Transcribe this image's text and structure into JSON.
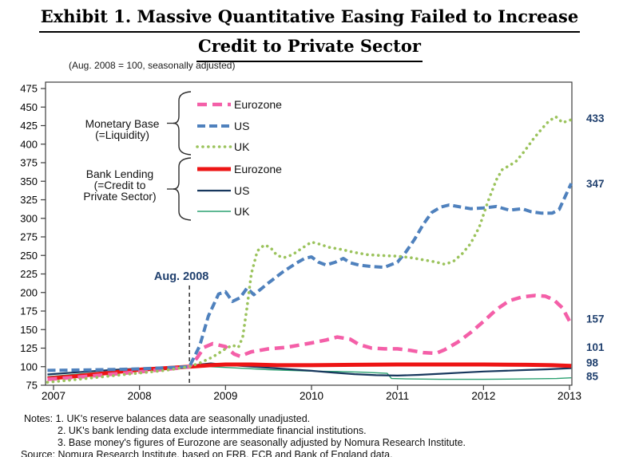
{
  "title": {
    "line1": "Exhibit 1. Massive Quantitative Easing Failed to Increase",
    "line2": "Credit to Private Sector"
  },
  "notes": [
    "Notes: 1. UK's reserve balances data are seasonally unadjusted.",
    "2. UK's bank lending data exclude intermmediate financial institutions.",
    "3. Base money's figures of Eurozone are seasonally adjusted by Nomura Research Institute."
  ],
  "source": "Source: Nomura Research Institute, based on FRB, ECB and Bank of England data.",
  "colors": {
    "accent_text": "#20406e",
    "axis": "#3c3c3c",
    "eurozone_mb": "#f45fa8",
    "us_mb": "#4f81bd",
    "uk_mb": "#9bc35c",
    "eurozone_bl": "#ed1515",
    "us_bl": "#17375d",
    "uk_bl": "#2aa070"
  },
  "chart_data": {
    "type": "line",
    "title": "Exhibit 1. Massive Quantitative Easing Failed to Increase Credit to Private Sector",
    "index_note": "(Aug. 2008 = 100, seasonally adjusted)",
    "x_ticks": [
      2007,
      2008,
      2009,
      2010,
      2011,
      2012,
      2013
    ],
    "ylim": [
      75,
      475
    ],
    "y_tick_step": 25,
    "grid": false,
    "legend_position": "top-left-inside",
    "annotation": {
      "label": "Aug. 2008",
      "x_year": 2008.58
    },
    "legend": {
      "groups": [
        {
          "name": "monetary-base",
          "label_lines": [
            "Monetary Base",
            "(=Liquidity)"
          ],
          "entries": [
            {
              "label": "Eurozone",
              "series": "ez_mb"
            },
            {
              "label": "US",
              "series": "us_mb"
            },
            {
              "label": "UK",
              "series": "uk_mb"
            }
          ]
        },
        {
          "name": "bank-lending",
          "label_lines": [
            "Bank Lending",
            "(=Credit to",
            "Private Sector)"
          ],
          "entries": [
            {
              "label": "Eurozone",
              "series": "ez_bl"
            },
            {
              "label": "US",
              "series": "us_bl"
            },
            {
              "label": "UK",
              "series": "uk_bl"
            }
          ]
        }
      ]
    },
    "series": [
      {
        "key": "ez_mb",
        "name": "Eurozone Monetary Base",
        "legend_label": "Eurozone",
        "group": "Monetary Base",
        "color": "#f45fa8",
        "style": "dashed",
        "end_label": 157,
        "points": [
          [
            2006.93,
            83
          ],
          [
            2007.25,
            85.5
          ],
          [
            2007.5,
            88
          ],
          [
            2007.75,
            90.5
          ],
          [
            2008.0,
            93
          ],
          [
            2008.25,
            96
          ],
          [
            2008.45,
            98
          ],
          [
            2008.58,
            100
          ],
          [
            2008.67,
            112
          ],
          [
            2008.75,
            126
          ],
          [
            2008.85,
            131
          ],
          [
            2009.0,
            127
          ],
          [
            2009.1,
            117
          ],
          [
            2009.17,
            114
          ],
          [
            2009.3,
            120
          ],
          [
            2009.5,
            124
          ],
          [
            2009.7,
            126
          ],
          [
            2009.85,
            129
          ],
          [
            2010.0,
            132
          ],
          [
            2010.17,
            136
          ],
          [
            2010.3,
            140
          ],
          [
            2010.45,
            137
          ],
          [
            2010.55,
            130
          ],
          [
            2010.7,
            125
          ],
          [
            2010.85,
            124
          ],
          [
            2011.0,
            124
          ],
          [
            2011.15,
            122
          ],
          [
            2011.3,
            119
          ],
          [
            2011.45,
            118
          ],
          [
            2011.55,
            123
          ],
          [
            2011.7,
            133
          ],
          [
            2011.85,
            146
          ],
          [
            2012.0,
            161
          ],
          [
            2012.15,
            177
          ],
          [
            2012.3,
            189
          ],
          [
            2012.45,
            194
          ],
          [
            2012.6,
            196
          ],
          [
            2012.72,
            195
          ],
          [
            2012.82,
            190
          ],
          [
            2012.92,
            179
          ],
          [
            2013.02,
            157
          ]
        ]
      },
      {
        "key": "us_mb",
        "name": "US Monetary Base",
        "legend_label": "US",
        "group": "Monetary Base",
        "color": "#4f81bd",
        "style": "dashed",
        "end_label": 347,
        "points": [
          [
            2006.93,
            95
          ],
          [
            2007.3,
            95.5
          ],
          [
            2007.6,
            96
          ],
          [
            2008.0,
            97
          ],
          [
            2008.3,
            98.5
          ],
          [
            2008.58,
            100
          ],
          [
            2008.7,
            128
          ],
          [
            2008.8,
            168
          ],
          [
            2008.92,
            198
          ],
          [
            2009.0,
            201
          ],
          [
            2009.08,
            188
          ],
          [
            2009.17,
            193
          ],
          [
            2009.25,
            206
          ],
          [
            2009.33,
            197
          ],
          [
            2009.5,
            213
          ],
          [
            2009.67,
            228
          ],
          [
            2009.83,
            240
          ],
          [
            2009.92,
            246
          ],
          [
            2010.0,
            248
          ],
          [
            2010.08,
            241
          ],
          [
            2010.17,
            237
          ],
          [
            2010.28,
            241
          ],
          [
            2010.37,
            246
          ],
          [
            2010.45,
            240
          ],
          [
            2010.55,
            237
          ],
          [
            2010.7,
            235
          ],
          [
            2010.85,
            234
          ],
          [
            2011.0,
            241
          ],
          [
            2011.1,
            255
          ],
          [
            2011.2,
            272
          ],
          [
            2011.3,
            292
          ],
          [
            2011.4,
            308
          ],
          [
            2011.5,
            315
          ],
          [
            2011.6,
            318
          ],
          [
            2011.7,
            316
          ],
          [
            2011.85,
            313
          ],
          [
            2012.0,
            314
          ],
          [
            2012.15,
            316
          ],
          [
            2012.3,
            311
          ],
          [
            2012.45,
            313
          ],
          [
            2012.55,
            309
          ],
          [
            2012.67,
            307
          ],
          [
            2012.8,
            307
          ],
          [
            2012.88,
            312
          ],
          [
            2013.02,
            347
          ]
        ]
      },
      {
        "key": "uk_mb",
        "name": "UK Monetary Base",
        "legend_label": "UK",
        "group": "Monetary Base",
        "color": "#9bc35c",
        "style": "dotted",
        "end_label": 433,
        "points": [
          [
            2006.93,
            79
          ],
          [
            2007.25,
            82.5
          ],
          [
            2007.5,
            85.5
          ],
          [
            2007.75,
            88.5
          ],
          [
            2008.0,
            91.5
          ],
          [
            2008.3,
            95
          ],
          [
            2008.58,
            100
          ],
          [
            2008.7,
            105
          ],
          [
            2008.85,
            113
          ],
          [
            2009.0,
            124
          ],
          [
            2009.08,
            129
          ],
          [
            2009.15,
            126
          ],
          [
            2009.2,
            140
          ],
          [
            2009.25,
            180
          ],
          [
            2009.3,
            225
          ],
          [
            2009.37,
            256
          ],
          [
            2009.45,
            264
          ],
          [
            2009.52,
            261
          ],
          [
            2009.6,
            250
          ],
          [
            2009.68,
            247
          ],
          [
            2009.78,
            251
          ],
          [
            2009.88,
            259
          ],
          [
            2010.0,
            268
          ],
          [
            2010.1,
            265
          ],
          [
            2010.2,
            261
          ],
          [
            2010.35,
            258
          ],
          [
            2010.5,
            254
          ],
          [
            2010.65,
            251
          ],
          [
            2010.8,
            250
          ],
          [
            2011.0,
            249
          ],
          [
            2011.15,
            247
          ],
          [
            2011.3,
            244
          ],
          [
            2011.45,
            241
          ],
          [
            2011.55,
            238
          ],
          [
            2011.65,
            242
          ],
          [
            2011.75,
            252
          ],
          [
            2011.85,
            266
          ],
          [
            2011.95,
            288
          ],
          [
            2012.05,
            322
          ],
          [
            2012.15,
            352
          ],
          [
            2012.22,
            366
          ],
          [
            2012.3,
            371
          ],
          [
            2012.38,
            377
          ],
          [
            2012.48,
            391
          ],
          [
            2012.58,
            407
          ],
          [
            2012.68,
            421
          ],
          [
            2012.76,
            431
          ],
          [
            2012.84,
            437
          ],
          [
            2012.92,
            429
          ],
          [
            2013.02,
            433
          ]
        ]
      },
      {
        "key": "ez_bl",
        "name": "Eurozone Bank Lending",
        "legend_label": "Eurozone",
        "group": "Bank Lending",
        "color": "#ed1515",
        "style": "solid-thick",
        "end_label": 101,
        "points": [
          [
            2006.93,
            84
          ],
          [
            2007.25,
            87
          ],
          [
            2007.5,
            90
          ],
          [
            2007.75,
            93
          ],
          [
            2008.0,
            96
          ],
          [
            2008.3,
            98
          ],
          [
            2008.58,
            100
          ],
          [
            2008.83,
            102
          ],
          [
            2009.0,
            103
          ],
          [
            2009.3,
            103
          ],
          [
            2009.6,
            102
          ],
          [
            2010.0,
            102
          ],
          [
            2010.5,
            102.5
          ],
          [
            2011.0,
            103
          ],
          [
            2011.5,
            103
          ],
          [
            2012.0,
            103
          ],
          [
            2012.5,
            102.5
          ],
          [
            2012.8,
            102
          ],
          [
            2013.02,
            101
          ]
        ]
      },
      {
        "key": "us_bl",
        "name": "US Bank Lending",
        "legend_label": "US",
        "group": "Bank Lending",
        "color": "#17375d",
        "style": "solid",
        "end_label": 98,
        "points": [
          [
            2006.93,
            89.5
          ],
          [
            2007.33,
            93
          ],
          [
            2007.67,
            95.5
          ],
          [
            2008.0,
            97.5
          ],
          [
            2008.33,
            99
          ],
          [
            2008.58,
            100
          ],
          [
            2008.7,
            103
          ],
          [
            2008.83,
            104.5
          ],
          [
            2009.0,
            102.5
          ],
          [
            2009.25,
            100.5
          ],
          [
            2009.5,
            98.5
          ],
          [
            2009.75,
            96.5
          ],
          [
            2010.0,
            94.5
          ],
          [
            2010.25,
            92
          ],
          [
            2010.5,
            90
          ],
          [
            2010.75,
            88.5
          ],
          [
            2011.0,
            88
          ],
          [
            2011.25,
            89
          ],
          [
            2011.5,
            90.5
          ],
          [
            2011.75,
            92
          ],
          [
            2012.0,
            93.5
          ],
          [
            2012.25,
            94.5
          ],
          [
            2012.5,
            95.5
          ],
          [
            2012.75,
            96.5
          ],
          [
            2013.02,
            98
          ]
        ]
      },
      {
        "key": "uk_bl",
        "name": "UK Bank Lending",
        "legend_label": "UK",
        "group": "Bank Lending",
        "color": "#2aa070",
        "style": "solid-thin",
        "end_label": 85,
        "points": [
          [
            2006.93,
            86.5
          ],
          [
            2007.33,
            90.5
          ],
          [
            2007.67,
            93.5
          ],
          [
            2008.0,
            96
          ],
          [
            2008.33,
            98
          ],
          [
            2008.58,
            100
          ],
          [
            2008.83,
            100
          ],
          [
            2009.0,
            99
          ],
          [
            2009.25,
            97.5
          ],
          [
            2009.5,
            96
          ],
          [
            2009.75,
            95
          ],
          [
            2010.0,
            94
          ],
          [
            2010.3,
            93.5
          ],
          [
            2010.6,
            92.5
          ],
          [
            2010.88,
            91
          ],
          [
            2010.93,
            84
          ],
          [
            2011.1,
            83.5
          ],
          [
            2011.5,
            83
          ],
          [
            2012.0,
            83
          ],
          [
            2012.5,
            83.5
          ],
          [
            2012.85,
            84
          ],
          [
            2013.02,
            85
          ]
        ]
      }
    ]
  }
}
